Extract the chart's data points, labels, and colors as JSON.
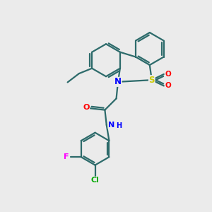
{
  "bg_color": "#ebebeb",
  "bond_color": "#2d6b6b",
  "atom_colors": {
    "N": "#0000ff",
    "S": "#cccc00",
    "O": "#ff0000",
    "F": "#ff00ff",
    "Cl": "#00aa00",
    "C": "#2d6b6b",
    "H": "#0000ff"
  }
}
